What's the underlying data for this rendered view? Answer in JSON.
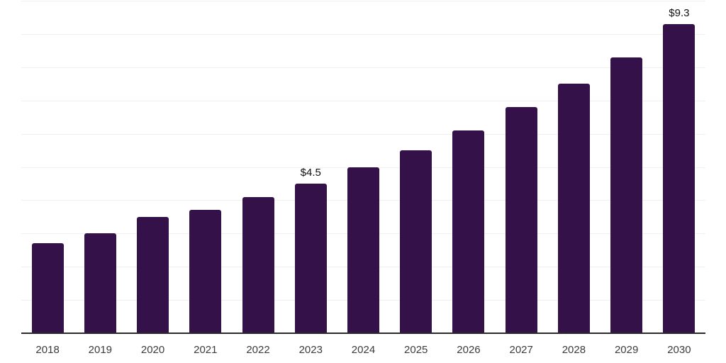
{
  "chart_data": {
    "type": "bar",
    "title": "",
    "xlabel": "",
    "ylabel": "",
    "categories": [
      "2018",
      "2019",
      "2020",
      "2021",
      "2022",
      "2023",
      "2024",
      "2025",
      "2026",
      "2027",
      "2028",
      "2029",
      "2030"
    ],
    "values": [
      2.7,
      3.0,
      3.5,
      3.7,
      4.1,
      4.5,
      5.0,
      5.5,
      6.1,
      6.8,
      7.5,
      8.3,
      9.3
    ],
    "bar_labels": [
      "",
      "",
      "",
      "",
      "",
      "$4.5",
      "",
      "",
      "",
      "",
      "",
      "",
      "$9.3"
    ],
    "ylim": [
      0,
      10
    ],
    "grid_interval": 1,
    "grid_horizontal": true,
    "y_axis_tick_labels_visible": false,
    "legend_position": "none",
    "colors": {
      "bar": "#35114A",
      "axis_line": "#2b2b2b",
      "gridline": "#f0f0f0",
      "tick_label": "#3c3c3c",
      "data_label": "#111111",
      "background": "#ffffff"
    }
  }
}
